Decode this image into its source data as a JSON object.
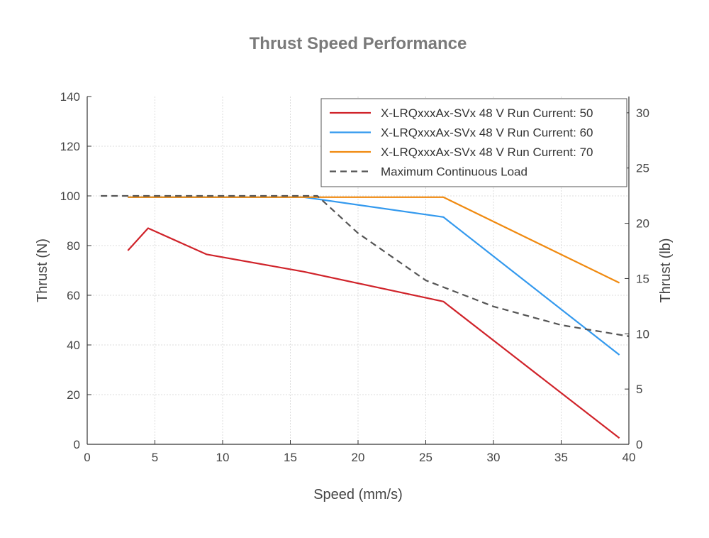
{
  "chart_data": {
    "type": "line",
    "title": "Thrust Speed Performance",
    "xlabel": "Speed (mm/s)",
    "ylabel": "Thrust (N)",
    "ylabel_right": "Thrust (lb)",
    "xlim": [
      0,
      40
    ],
    "ylim": [
      0,
      140
    ],
    "ylim_right": [
      0,
      31.47
    ],
    "x_ticks": [
      0,
      5,
      10,
      15,
      20,
      25,
      30,
      35,
      40
    ],
    "y_ticks": [
      0,
      20,
      40,
      60,
      80,
      100,
      120,
      140
    ],
    "y_ticks_right": [
      0,
      5,
      10,
      15,
      20,
      25,
      30
    ],
    "grid": true,
    "legend_position": "top-right",
    "series": [
      {
        "name": "X-LRQxxxAx-SVx 48 V Run Current: 50",
        "color": "#d0232a",
        "dash": "solid",
        "x": [
          3.0,
          4.5,
          8.8,
          16.0,
          26.3,
          39.3
        ],
        "y": [
          78,
          87,
          76.5,
          69.5,
          57.5,
          2.5
        ]
      },
      {
        "name": "X-LRQxxxAx-SVx 48 V Run Current: 60",
        "color": "#3399ee",
        "dash": "solid",
        "x": [
          3.0,
          16.0,
          26.3,
          39.3
        ],
        "y": [
          99.5,
          99.5,
          91.5,
          36
        ]
      },
      {
        "name": "X-LRQxxxAx-SVx 48 V Run Current: 70",
        "color": "#f08a10",
        "dash": "solid",
        "x": [
          3.0,
          16.0,
          26.3,
          39.3
        ],
        "y": [
          99.5,
          99.5,
          99.5,
          65
        ]
      },
      {
        "name": "Maximum Continuous Load",
        "color": "#555555",
        "dash": "dashed",
        "x": [
          1.0,
          17.0,
          20.0,
          25.0,
          30.0,
          35.0,
          40.0
        ],
        "y": [
          100,
          100,
          85,
          66,
          55.5,
          48,
          43.5
        ]
      }
    ]
  }
}
